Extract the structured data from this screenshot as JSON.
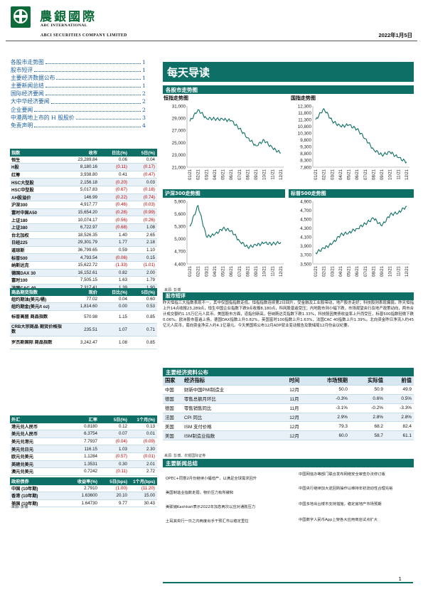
{
  "header": {
    "brand_zh": "農銀國際",
    "brand_en1": "ABC INTERNATIONAL",
    "brand_en2": "ABCI SECURITIES COMPANY LIMITED",
    "date": "2022年1月5日"
  },
  "toc": [
    {
      "title": "各股市走势图",
      "page": "1"
    },
    {
      "title": "股市短评",
      "page": "1"
    },
    {
      "title": "主要经济数据公布",
      "page": "1"
    },
    {
      "title": "主要新闻总结",
      "page": "1"
    },
    {
      "title": "国际经济要闻",
      "page": "2"
    },
    {
      "title": "大中华经济要闻",
      "page": "2"
    },
    {
      "title": "企业要闻",
      "page": "2"
    },
    {
      "title": "中港两地上市的 H 股股价",
      "page": "3"
    },
    {
      "title": "免责声明",
      "page": "4"
    }
  ],
  "index_table": {
    "headers": [
      "指数",
      "收市",
      "日比(%)",
      "5日(%)"
    ],
    "rows": [
      {
        "name": "恒生",
        "close": "23,289.84",
        "d1": "0.06",
        "d5": "0.04"
      },
      {
        "name": "H股",
        "close": "8,180.16",
        "d1": "(0.11)",
        "d5": "(0.17)"
      },
      {
        "name": "红筹",
        "close": "3,938.80",
        "d1": "0.41",
        "d5": "(0.47)"
      },
      {
        "name": "HSC大型股",
        "close": "2,156.18",
        "d1": "(0.20)",
        "d5": "0.03"
      },
      {
        "name": "HSC中型股",
        "close": "5,017.83",
        "d1": "(0.67)",
        "d5": "(0.18)"
      },
      {
        "name": "AH股溢价",
        "close": "146.99",
        "d1": "(0.22)",
        "d5": "(0.74)"
      },
      {
        "name": "沪深300",
        "close": "4,917.77",
        "d1": "(0.46)",
        "d5": "(0.03)"
      },
      {
        "name": "富时中国A50",
        "close": "15,654.20",
        "d1": "(0.28)",
        "d5": "(0.99)"
      },
      {
        "name": "上证180",
        "close": "10,074.17",
        "d1": "(0.56)",
        "d5": "(0.26)"
      },
      {
        "name": "上证380",
        "close": "6,722.97",
        "d1": "(0.68)",
        "d5": "1.08"
      },
      {
        "name": "台北加权",
        "close": "18,526.35",
        "d1": "1.40",
        "d5": "2.65"
      },
      {
        "name": "日经225",
        "close": "29,301.79",
        "d1": "1.77",
        "d5": "2.18"
      },
      {
        "name": "道琼斯",
        "close": "36,799.65",
        "d1": "0.59",
        "d5": "1.10"
      },
      {
        "name": "标普500",
        "close": "4,793.54",
        "d1": "(0.06)",
        "d5": "0.15"
      },
      {
        "name": "纳斯达克",
        "close": "15,622.72",
        "d1": "(1.33)",
        "d5": "(1.01)"
      },
      {
        "name": "德国DAX 30",
        "close": "16,152.61",
        "d1": "0.82",
        "d5": "2.00"
      },
      {
        "name": "富时100",
        "close": "7,505.15",
        "d1": "1.63",
        "d5": "1.79"
      },
      {
        "name": "法国CAC 40",
        "close": "7,317.41",
        "d1": "1.39",
        "d5": "1.90"
      }
    ]
  },
  "commodity_table": {
    "headers": [
      "商品期货指数",
      "现价",
      "日比(%)",
      "5日(%)"
    ],
    "rows": [
      {
        "name": "纽约期油(美元/桶)",
        "close": "77.02",
        "d1": "0.04",
        "d5": "0.60"
      },
      {
        "name": "纽约期金(美元/t oz)",
        "close": "1,814.60",
        "d1": "0.00",
        "d5": "0.53"
      },
      {
        "name": "标普高盛 商品指数",
        "close": "570.98",
        "d1": "1.15",
        "d5": "0.85"
      },
      {
        "name": "CRB大宗商品 期货价格指数",
        "close": "235.51",
        "d1": "1.07",
        "d5": "0.71"
      },
      {
        "name": "罗杰斯国际 商品指数",
        "close": "3,242.47",
        "d1": "1.08",
        "d5": "0.85"
      }
    ]
  },
  "fx_table": {
    "headers": [
      "外汇",
      "汇率",
      "5日(%)",
      "1个月(%)"
    ],
    "rows": [
      {
        "name": "港元兑人民币",
        "close": "0.8180",
        "d1": "0.12",
        "d5": "0.13"
      },
      {
        "name": "美元兑人民币",
        "close": "6.3754",
        "d1": "0.07",
        "d5": "0.01"
      },
      {
        "name": "美元兑港元",
        "close": "7.7937",
        "d1": "(0.04)",
        "d5": "(0.09)"
      },
      {
        "name": "美元兑日元",
        "close": "116.15",
        "d1": "1.03",
        "d5": "2.30"
      },
      {
        "name": "欧元兑美元",
        "close": "1.1284",
        "d1": "(0.57)",
        "d5": "(0.01)"
      },
      {
        "name": "英磅兑美元",
        "close": "1.3531",
        "d1": "0.30",
        "d5": "2.01"
      },
      {
        "name": "澳元兑美元",
        "close": "0.7242",
        "d1": "(0.11)",
        "d5": "2.72"
      }
    ]
  },
  "bond_table": {
    "headers": [
      "政府债券",
      "收益率(%)",
      "5日(bps)",
      "1个月(bps)"
    ],
    "rows": [
      {
        "name": "中国 (10年期)",
        "close": "2.7910",
        "d1": "(1.00)",
        "d5": "(11.20)"
      },
      {
        "name": "香港 (10年期)",
        "close": "1.63600",
        "d1": "20.10",
        "d5": "15.00"
      },
      {
        "name": "美国 (10年期)",
        "close": "1.64730",
        "d1": "9.77",
        "d5": "30.43"
      }
    ],
    "source": "来源: 彭博"
  },
  "main": {
    "banner": "每天导读",
    "charts_section": "各股市走势图",
    "commentary_section": "股市短评",
    "econ_section": "主要经济资料公布",
    "news_section": "主要新闻总结",
    "chart_source": "来源: 彭博",
    "econ_source": "来源: 彭博、农银国际证券"
  },
  "chart_data": [
    {
      "type": "line",
      "title": "恒指走势图",
      "categories": [
        "01/21",
        "02/21",
        "03/21",
        "04/21",
        "05/21",
        "06/21",
        "07/21",
        "08/21",
        "09/21",
        "10/21",
        "11/21",
        "12/21"
      ],
      "yticks": [
        21000,
        23000,
        25000,
        27000,
        29000,
        31000
      ],
      "ylim": [
        21000,
        31000
      ],
      "values": [
        28500,
        30400,
        29000,
        28900,
        28800,
        28600,
        27300,
        25800,
        24500,
        25400,
        24100,
        23300
      ]
    },
    {
      "type": "line",
      "title": "国指走势图",
      "categories": [
        "01/21",
        "02/21",
        "03/21",
        "04/21",
        "05/21",
        "06/21",
        "07/21",
        "08/21",
        "09/21",
        "10/21",
        "11/21",
        "12/21"
      ],
      "yticks": [
        7800,
        8300,
        8800,
        9300,
        9800,
        10300,
        10800,
        11300,
        11800,
        12300
      ],
      "ylim": [
        7800,
        12300
      ],
      "values": [
        11300,
        12100,
        11200,
        10800,
        10900,
        10600,
        9900,
        9100,
        8700,
        8900,
        8500,
        8180
      ]
    },
    {
      "type": "line",
      "title": "沪深300走势图",
      "categories": [
        "01/21",
        "02/21",
        "03/21",
        "04/21",
        "05/21",
        "06/21",
        "07/21",
        "08/21",
        "09/21",
        "10/21",
        "11/21",
        "12/21"
      ],
      "yticks": [
        4400,
        4700,
        5000,
        5300,
        5600,
        5900
      ],
      "ylim": [
        4400,
        5900
      ],
      "values": [
        5300,
        5800,
        5050,
        5100,
        5250,
        5200,
        4950,
        4800,
        4850,
        4900,
        4880,
        4920
      ]
    },
    {
      "type": "line",
      "title": "标普500走势图",
      "categories": [
        "01/21",
        "02/21",
        "03/21",
        "04/21",
        "05/21",
        "06/21",
        "07/21",
        "08/21",
        "09/21",
        "10/21",
        "11/21",
        "12/21"
      ],
      "yticks": [
        3500,
        3700,
        3900,
        4100,
        4300,
        4500,
        4700,
        4900
      ],
      "ylim": [
        3500,
        4900
      ],
      "values": [
        3750,
        3850,
        3950,
        4150,
        4200,
        4290,
        4400,
        4520,
        4350,
        4600,
        4650,
        4790
      ]
    }
  ],
  "commentary": "昨天恒指三大指数表现不一，其中仅国指指数走低。恒指指数连续第2日回升，受金融及工业股带动，地产股亦走好；科技股则表现偏弱。昨天恒指上升14点收报23,289点，恒生中国企业指数下跌9点收报8,180点，科网股普遍受压；内地股市则小幅下跌，市场观望央行及地产政策动向，两市合计成交额约1.15万亿元人民币。美国股市方面，道指创新高，但纳斯达克指数下跌1.33%，科技股因美债收益率上升而受压，标普500指数轻微下跌0.06%。欧洲股市普遍上扬，德国DAX指数上升0.82%，英国富时100指数上升1.63%，法国CAC 40指数上升1.39%。北向资金昨日净流入约45亿元人民币，南向资金净买入约4.1亿港元。今天美国将公布12月ADP就业变动报告及联储局12月份会议纪要。",
  "econ_table": {
    "headers": [
      "国家",
      "经济指标",
      "时间",
      "市场预期",
      "实际值",
      "前值"
    ],
    "rows": [
      {
        "country": "中国",
        "item": "财新中国PMI制造业",
        "period": "12月",
        "exp": "50.0",
        "act": "50.9",
        "prev": "49.9"
      },
      {
        "country": "德国",
        "item": "零售总额月环比",
        "period": "11月",
        "exp": "-0.3%",
        "act": "0.6%",
        "prev": "0.5%"
      },
      {
        "country": "德国",
        "item": "零售销售同比",
        "period": "11月",
        "exp": "-3.1%",
        "act": "-0.2%",
        "prev": "-3.3%"
      },
      {
        "country": "法国",
        "item": "CPI 同比",
        "period": "12月",
        "exp": "2.9%",
        "act": "2.8%",
        "prev": "2.8%"
      },
      {
        "country": "美国",
        "item": "ISM 支付价格",
        "period": "12月",
        "exp": "79.3",
        "act": "68.2",
        "prev": "82.4"
      },
      {
        "country": "美国",
        "item": "ISM制造业指数",
        "period": "12月",
        "exp": "60.0",
        "act": "58.7",
        "prev": "61.1"
      }
    ]
  },
  "news_left": [
    "OPEC+同意2月份继续小幅增产，以满足全球需求回升",
    "美国制造业指数走弱，物价压力有所缓和",
    "美联储Kashkari表示2022年加息两次以应对通胀压力",
    "土耳其央行一日之内两度出手干预汇市以稳定里拉"
  ],
  "news_right": [
    "中国网信办等部门联合发布网络安全审查办法修订版",
    "中国央行继续加大逆回购操作以维持年初流动性合理充裕",
    "中国多地出台楼市支持措施，稳定房地产市场预期",
    "中国数字人民币App上架各大应用商店试点扩大"
  ],
  "page_number": "1"
}
